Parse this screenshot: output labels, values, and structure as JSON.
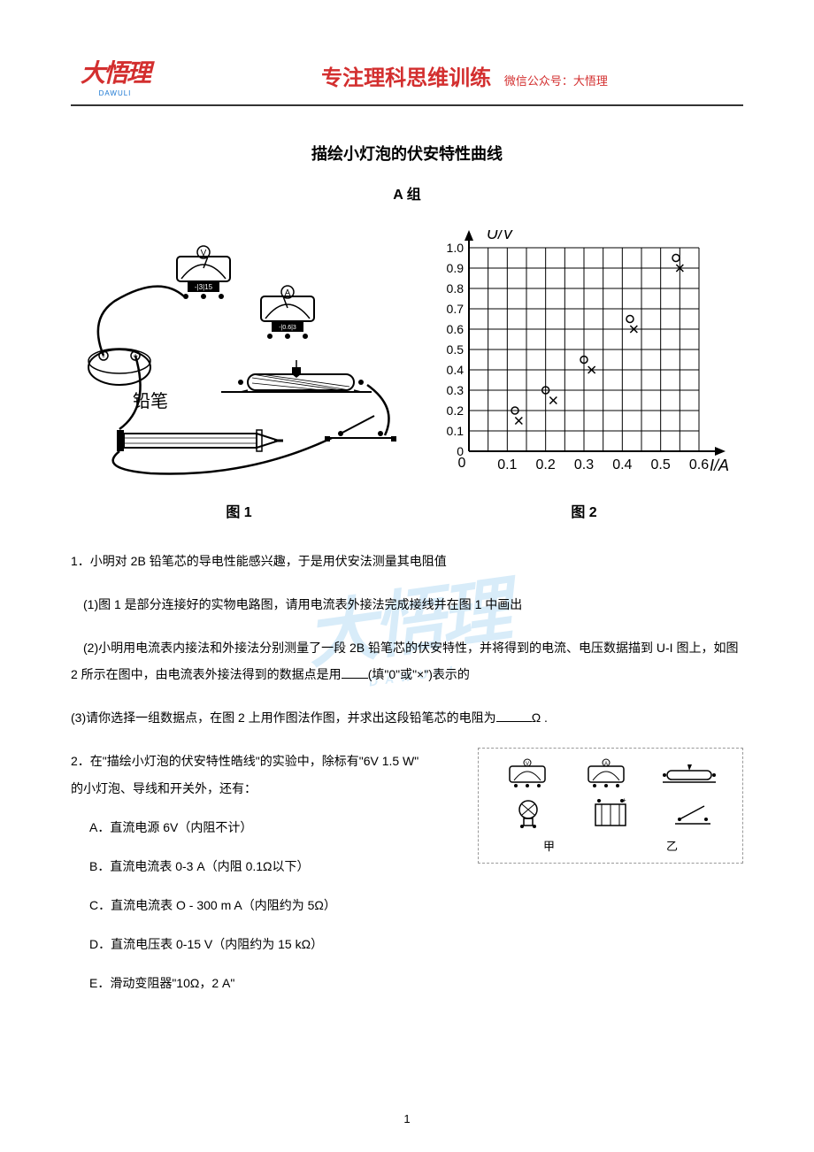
{
  "header": {
    "logo_main": "大悟理",
    "logo_sub": "DAWULI",
    "title": "专注理科思维训练",
    "subtitle": "微信公众号：大悟理"
  },
  "doc": {
    "title": "描绘小灯泡的伏安特性曲线",
    "group": "A 组"
  },
  "figure1": {
    "caption": "图 1",
    "pencil_label": "铅笔",
    "ammeter_range": "-0.6|3",
    "voltmeter_label": "V"
  },
  "figure2": {
    "caption": "图 2",
    "chart": {
      "type": "scatter",
      "ylabel": "U/V",
      "xlabel": "I/A",
      "ylim": [
        0,
        1.0
      ],
      "xlim": [
        0,
        0.6
      ],
      "ytick_labels": [
        "0",
        "0.1",
        "0.2",
        "0.3",
        "0.4",
        "0.5",
        "0.6",
        "0.7",
        "0.8",
        "0.9",
        "1.0"
      ],
      "xtick_labels": [
        "0",
        "0.1",
        "0.2",
        "0.3",
        "0.4",
        "0.5",
        "0.6"
      ],
      "grid_color": "#000000",
      "background_color": "#ffffff",
      "series": [
        {
          "marker": "circle",
          "label": "0",
          "points": [
            {
              "x": 0.12,
              "y": 0.2
            },
            {
              "x": 0.2,
              "y": 0.3
            },
            {
              "x": 0.3,
              "y": 0.45
            },
            {
              "x": 0.42,
              "y": 0.65
            },
            {
              "x": 0.54,
              "y": 0.95
            }
          ]
        },
        {
          "marker": "x",
          "label": "×",
          "points": [
            {
              "x": 0.13,
              "y": 0.15
            },
            {
              "x": 0.22,
              "y": 0.25
            },
            {
              "x": 0.32,
              "y": 0.4
            },
            {
              "x": 0.43,
              "y": 0.6
            },
            {
              "x": 0.55,
              "y": 0.9
            }
          ]
        }
      ]
    }
  },
  "q1": {
    "stem": "1．小明对 2B 铅笔芯的导电性能感兴趣，于是用伏安法测量其电阻值",
    "p1": "(1)图 1 是部分连接好的实物电路图，请用电流表外接法完成接线并在图 1 中画出",
    "p2a": "(2)小明用电流表内接法和外接法分别测量了一段 2B 铅笔芯的伏安特性，并将得到的电流、电压数据描到 U-I 图上，如图 2 所示在图中，由电流表外接法得到的数据点是用",
    "p2b": "(填\"0\"或\"×\")表示的",
    "p3a": "(3)请你选择一组数据点，在图 2 上用作图法作图，并求出这段铅笔芯的电阻为",
    "p3b": "Ω ."
  },
  "q2": {
    "stem_a": "2．在\"描绘小灯泡的伏安特性皓线\"的实验中，除标有\"6V   1.5 W\"",
    "stem_b": "的小灯泡、导线和开关外，还有：",
    "options": {
      "A": "A．直流电源 6V（内阻不计）",
      "B": "B．直流电流表 0-3 A（内阻 0.1Ω以下）",
      "C": "C．直流电流表 O - 300 m A（内阻约为 5Ω）",
      "D": "D．直流电压表 0-15 V（内阻约为 15 kΩ）",
      "E": "E．滑动变阻器\"10Ω，2 A\""
    },
    "fig_labels": {
      "left": "甲",
      "right": "乙"
    }
  },
  "watermark": {
    "main": "大悟理",
    "sub": "DAWULI"
  },
  "page_number": "1"
}
